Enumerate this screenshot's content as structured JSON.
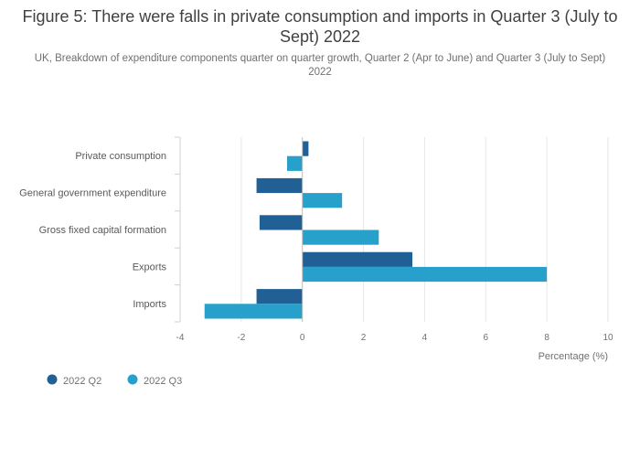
{
  "chart_data": {
    "type": "bar",
    "orientation": "horizontal",
    "title": "Figure 5: There were falls in private consumption and imports in Quarter 3 (July to Sept) 2022",
    "subtitle": "UK, Breakdown of expenditure components quarter on quarter growth, Quarter 2 (Apr to June) and Quarter 3 (July to Sept) 2022",
    "categories": [
      "Private consumption",
      "General government expenditure",
      "Gross fixed capital formation",
      "Exports",
      "Imports"
    ],
    "series": [
      {
        "name": "2022 Q2",
        "color": "#206095",
        "values": [
          0.2,
          -1.5,
          -1.4,
          3.6,
          -1.5
        ]
      },
      {
        "name": "2022 Q3",
        "color": "#27a0cc",
        "values": [
          -0.5,
          1.3,
          2.5,
          8.0,
          -3.2
        ]
      }
    ],
    "xlabel": "Percentage (%)",
    "ylabel": "",
    "xlim": [
      -4,
      10
    ],
    "xticks": [
      -4,
      -2,
      0,
      2,
      4,
      6,
      8,
      10
    ],
    "grid": true,
    "legend_position": "bottom-left"
  }
}
